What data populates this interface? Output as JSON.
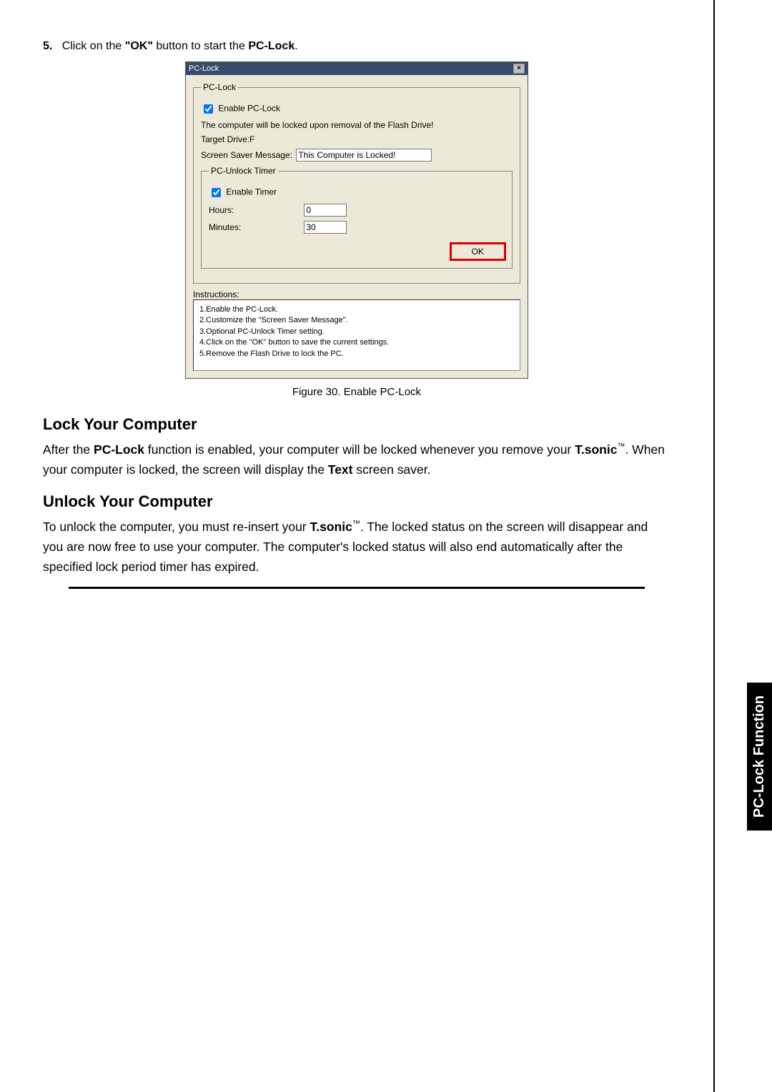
{
  "step": {
    "number": "5.",
    "prefix": "Click on the ",
    "ok_quoted": "\"OK\"",
    "mid": " button to start the ",
    "pclock": "PC-Lock",
    "tail": "."
  },
  "dialog": {
    "title": "PC-Lock",
    "groupbox_title": "PC-Lock",
    "enable_checkbox_label": "Enable PC-Lock",
    "enable_checked": true,
    "lock_note": "The computer will be locked upon removal of the Flash Drive!",
    "target_drive_label": "Target Drive:F",
    "ssm_label": "Screen Saver Message:",
    "ssm_value": "This Computer is Locked!",
    "timer": {
      "group_title": "PC-Unlock Timer",
      "enable_label": "Enable Timer",
      "enable_checked": true,
      "hours_label": "Hours:",
      "hours_value": "0",
      "minutes_label": "Minutes:",
      "minutes_value": "30"
    },
    "ok_label": "OK",
    "instructions_label": "Instructions:",
    "instructions": [
      "1.Enable the PC-Lock.",
      "2.Customize the \"Screen Saver Message\".",
      "3.Optional PC-Unlock Timer setting.",
      "4.Click on the \"OK\" button to save the current settings.",
      "5.Remove the Flash Drive to lock the PC."
    ]
  },
  "figure_caption": "Figure 30. Enable PC-Lock",
  "section1": {
    "heading": "Lock Your Computer",
    "para_parts": {
      "p1a": "After the ",
      "p1b": "PC-Lock",
      "p1c": " function is enabled, your computer will be locked whenever you remove your ",
      "p1d": "T.sonic",
      "p1e": ". When your computer is locked, the screen will display the ",
      "p1f": "Text",
      "p1g": " screen saver."
    }
  },
  "section2": {
    "heading": "Unlock Your Computer",
    "para_parts": {
      "p2a": "To unlock the computer, you must re-insert your ",
      "p2b": "T.sonic",
      "p2c": ". The locked status on the screen will disappear and you are now free to use your computer. The computer's locked status will also end automatically after the specified lock period timer has expired."
    }
  },
  "side_tab": "PC-Lock Function",
  "tm": "™"
}
